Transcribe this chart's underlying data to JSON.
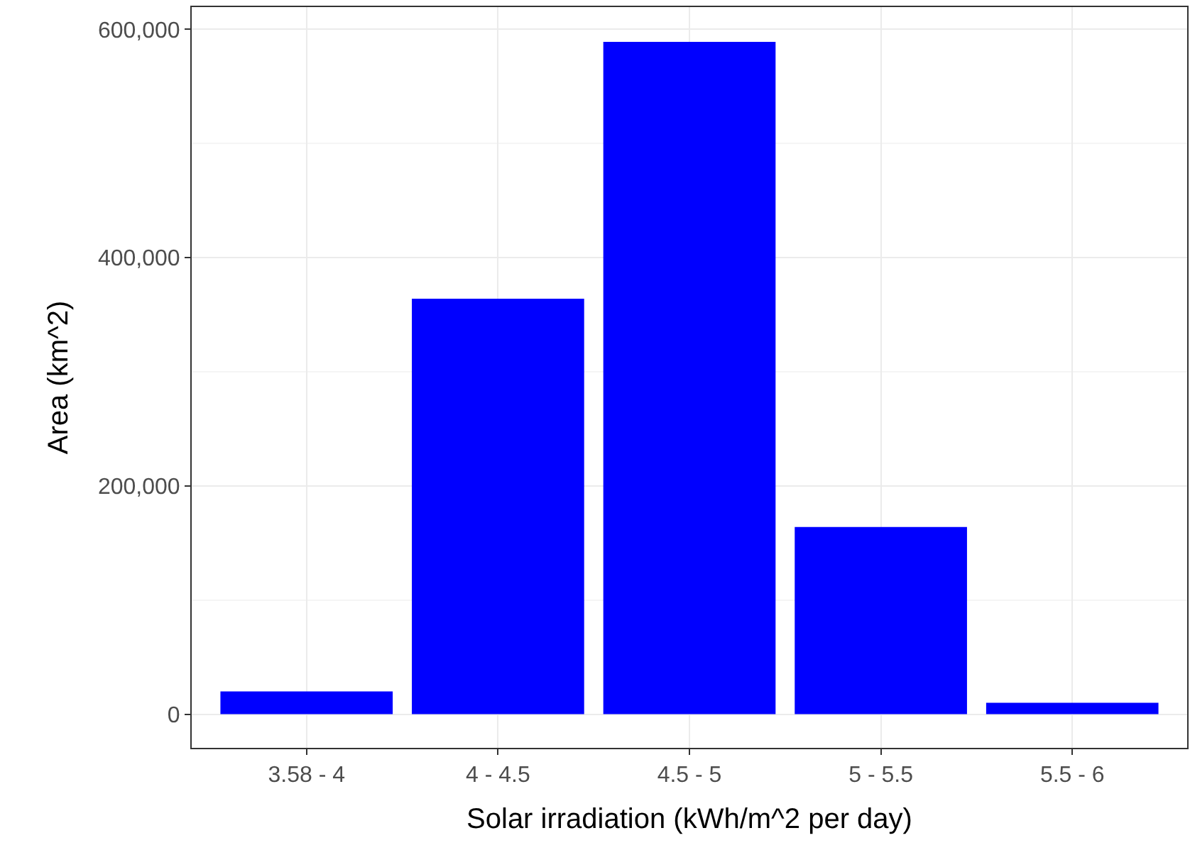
{
  "chart_data": {
    "type": "bar",
    "xlabel": "Solar irradiation (kWh/m^2 per day)",
    "ylabel": "Area (km^2)",
    "categories": [
      "3.58 - 4",
      "4 - 4.5",
      "4.5 - 5",
      "5 - 5.5",
      "5.5 - 6"
    ],
    "values": [
      20000,
      364000,
      589000,
      164000,
      10000
    ],
    "color": "#0000ff",
    "ylim": [
      -29500,
      619500
    ],
    "yticks": [
      {
        "value": 0,
        "label": "0"
      },
      {
        "value": 200000,
        "label": "200,000"
      },
      {
        "value": 400000,
        "label": "400,000"
      },
      {
        "value": 600000,
        "label": "600,000"
      }
    ],
    "grid": true
  }
}
